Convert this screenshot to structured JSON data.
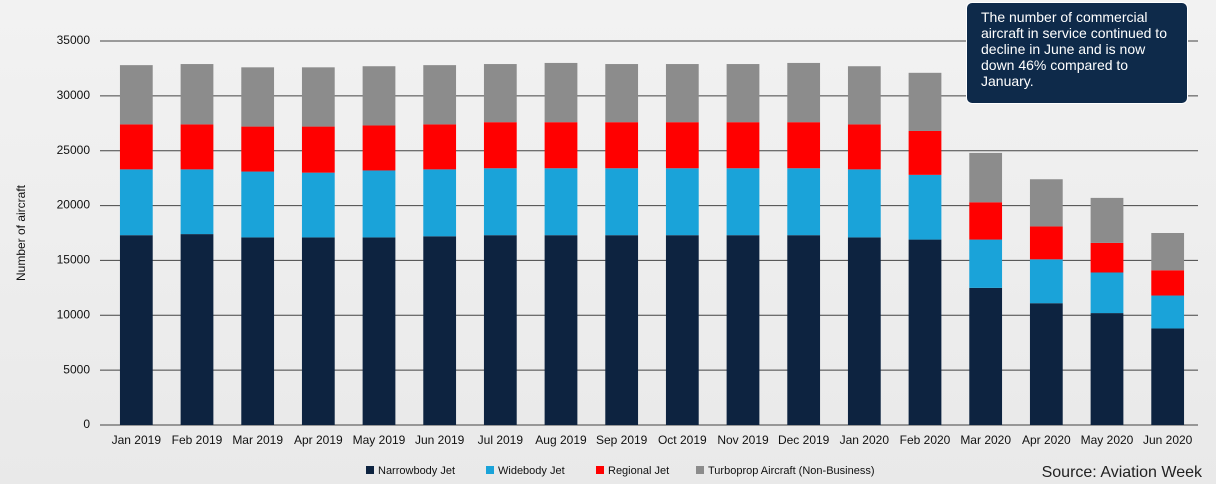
{
  "chart_data": {
    "type": "bar",
    "stacked": true,
    "ylabel": "Number of aircraft",
    "annotation": "The number of commercial aircraft in service continued to decline in June and is now down 46% compared to January.",
    "source": "Source: Aviation Week",
    "categories": [
      "Jan 2019",
      "Feb 2019",
      "Mar 2019",
      "Apr 2019",
      "May 2019",
      "Jun 2019",
      "Jul 2019",
      "Aug 2019",
      "Sep 2019",
      "Oct 2019",
      "Nov 2019",
      "Dec 2019",
      "Jan 2020",
      "Feb 2020",
      "Mar 2020",
      "Apr 2020",
      "May 2020",
      "Jun 2020"
    ],
    "series": [
      {
        "name": "Narrowbody Jet",
        "color": "#0d2340",
        "values": [
          17300,
          17400,
          17100,
          17100,
          17100,
          17200,
          17300,
          17300,
          17300,
          17300,
          17300,
          17300,
          17100,
          16900,
          12500,
          11100,
          10200,
          8800
        ]
      },
      {
        "name": "Widebody Jet",
        "color": "#1aa3d9",
        "values": [
          6000,
          5900,
          6000,
          5900,
          6100,
          6100,
          6100,
          6100,
          6100,
          6100,
          6100,
          6100,
          6200,
          5900,
          4400,
          4000,
          3700,
          3000
        ]
      },
      {
        "name": "Regional Jet",
        "color": "#ff0000",
        "values": [
          4100,
          4100,
          4100,
          4200,
          4100,
          4100,
          4200,
          4200,
          4200,
          4200,
          4200,
          4200,
          4100,
          4000,
          3400,
          3000,
          2700,
          2300
        ]
      },
      {
        "name": "Turboprop Aircraft (Non-Business)",
        "color": "#8c8c8c",
        "values": [
          5400,
          5500,
          5400,
          5400,
          5400,
          5400,
          5300,
          5400,
          5300,
          5300,
          5300,
          5400,
          5300,
          5300,
          4500,
          4300,
          4100,
          3400
        ]
      }
    ],
    "ylim": [
      0,
      35000
    ],
    "yticks": [
      0,
      5000,
      10000,
      15000,
      20000,
      25000,
      30000,
      35000
    ],
    "grid": true,
    "legend": "bottom"
  }
}
